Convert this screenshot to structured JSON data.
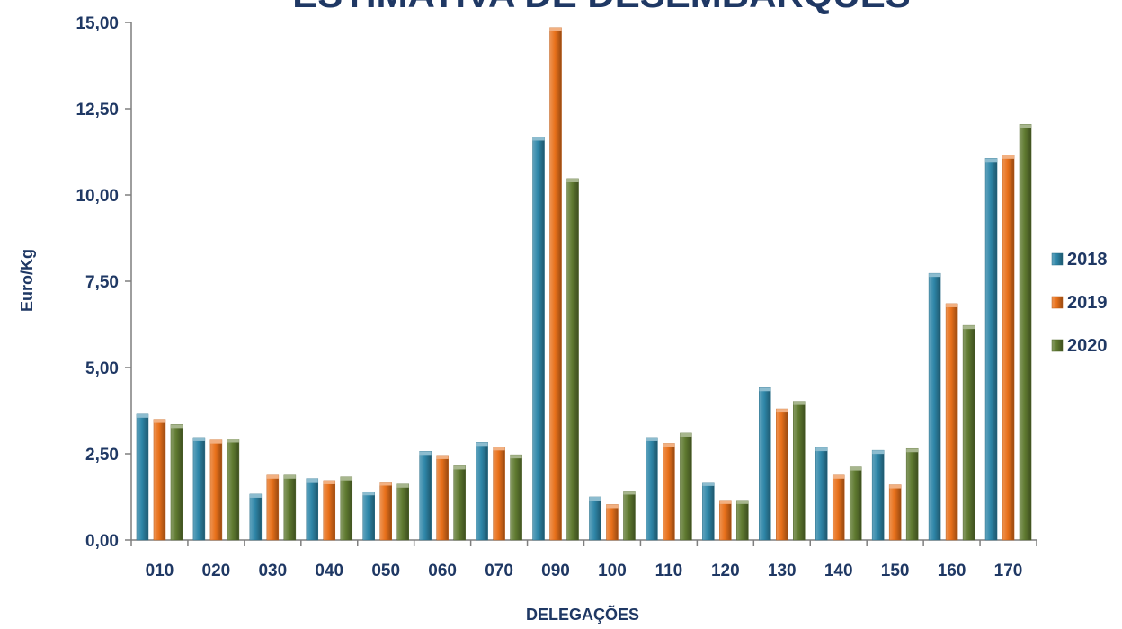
{
  "chart_data": {
    "type": "bar",
    "title": "ESTIMATIVA DE DESEMBARQUES",
    "xlabel": "DELEGAÇÕES",
    "ylabel": "Euro/Kg",
    "ylim": [
      0,
      15
    ],
    "yticks": [
      "0,00",
      "2,50",
      "5,00",
      "7,50",
      "10,00",
      "12,50",
      "15,00"
    ],
    "grid": false,
    "legend_position": "right",
    "categories": [
      "010",
      "020",
      "030",
      "040",
      "050",
      "060",
      "070",
      "090",
      "100",
      "110",
      "120",
      "130",
      "140",
      "150",
      "160",
      "170"
    ],
    "series": [
      {
        "name": "2018",
        "color": "#2e86a8",
        "values": [
          3.65,
          2.97,
          1.33,
          1.78,
          1.4,
          2.57,
          2.83,
          11.68,
          1.25,
          2.97,
          1.67,
          4.42,
          2.68,
          2.6,
          7.73,
          11.06
        ]
      },
      {
        "name": "2019",
        "color": "#e8701a",
        "values": [
          3.5,
          2.9,
          1.88,
          1.72,
          1.68,
          2.45,
          2.7,
          14.85,
          1.03,
          2.8,
          1.15,
          3.8,
          1.88,
          1.6,
          6.85,
          11.15
        ]
      },
      {
        "name": "2020",
        "color": "#5f7a30",
        "values": [
          3.35,
          2.93,
          1.88,
          1.83,
          1.62,
          2.15,
          2.47,
          10.47,
          1.42,
          3.1,
          1.15,
          4.02,
          2.12,
          2.65,
          6.22,
          12.05
        ]
      }
    ]
  }
}
